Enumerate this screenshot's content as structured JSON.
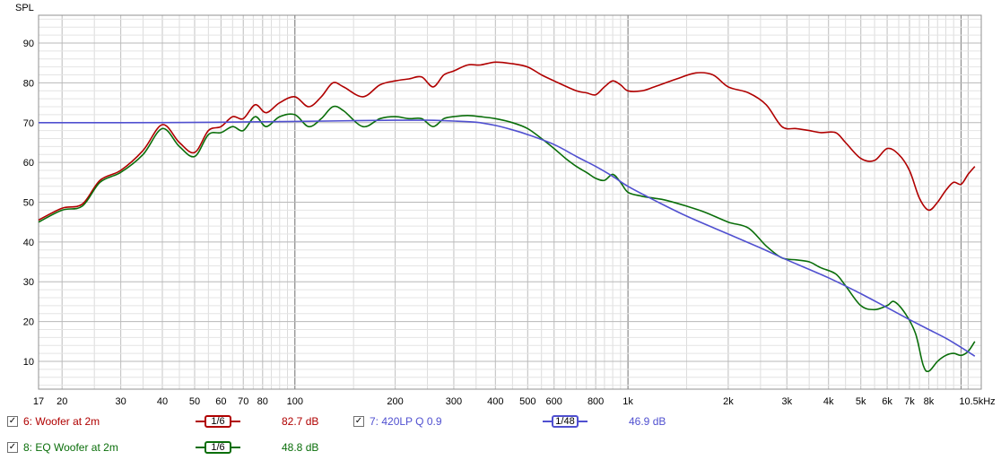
{
  "chart_data": {
    "type": "line",
    "ylabel": "SPL",
    "xunit": "kHz",
    "xscale": "log",
    "xlim": [
      17,
      11500
    ],
    "ylim": [
      3,
      97
    ],
    "yticks": [
      10,
      20,
      30,
      40,
      50,
      60,
      70,
      80,
      90
    ],
    "xticks": [
      {
        "v": 17,
        "label": "17"
      },
      {
        "v": 20,
        "label": "20"
      },
      {
        "v": 30,
        "label": "30"
      },
      {
        "v": 40,
        "label": "40"
      },
      {
        "v": 50,
        "label": "50"
      },
      {
        "v": 60,
        "label": "60"
      },
      {
        "v": 70,
        "label": "70"
      },
      {
        "v": 80,
        "label": "80"
      },
      {
        "v": 100,
        "label": "100"
      },
      {
        "v": 200,
        "label": "200"
      },
      {
        "v": 300,
        "label": "300"
      },
      {
        "v": 400,
        "label": "400"
      },
      {
        "v": 500,
        "label": "500"
      },
      {
        "v": 600,
        "label": "600"
      },
      {
        "v": 800,
        "label": "800"
      },
      {
        "v": 1000,
        "label": "1k"
      },
      {
        "v": 2000,
        "label": "2k"
      },
      {
        "v": 3000,
        "label": "3k"
      },
      {
        "v": 4000,
        "label": "4k"
      },
      {
        "v": 5000,
        "label": "5k"
      },
      {
        "v": 6000,
        "label": "6k"
      },
      {
        "v": 7000,
        "label": "7k"
      },
      {
        "v": 8000,
        "label": "8k"
      },
      {
        "v": 10500,
        "label": "10.5kHz"
      }
    ],
    "major_x": [
      100,
      1000,
      10000
    ],
    "grid": true,
    "series": [
      {
        "name": "6: Woofer at 2m",
        "color": "#b00000",
        "points": [
          [
            17,
            45.5
          ],
          [
            20,
            48.5
          ],
          [
            23,
            49.5
          ],
          [
            26,
            55.5
          ],
          [
            30,
            58
          ],
          [
            35,
            63
          ],
          [
            40,
            69.5
          ],
          [
            45,
            65
          ],
          [
            50,
            62.5
          ],
          [
            55,
            68
          ],
          [
            60,
            69
          ],
          [
            65,
            71.5
          ],
          [
            70,
            71
          ],
          [
            76,
            74.5
          ],
          [
            82,
            72.5
          ],
          [
            90,
            75
          ],
          [
            100,
            76.5
          ],
          [
            110,
            74
          ],
          [
            120,
            76.5
          ],
          [
            130,
            80
          ],
          [
            140,
            79
          ],
          [
            160,
            76.5
          ],
          [
            180,
            79.5
          ],
          [
            200,
            80.5
          ],
          [
            220,
            81
          ],
          [
            240,
            81.5
          ],
          [
            260,
            79
          ],
          [
            280,
            82
          ],
          [
            300,
            83
          ],
          [
            330,
            84.5
          ],
          [
            360,
            84.5
          ],
          [
            400,
            85.2
          ],
          [
            450,
            84.8
          ],
          [
            500,
            84
          ],
          [
            550,
            82
          ],
          [
            600,
            80.5
          ],
          [
            700,
            78
          ],
          [
            750,
            77.5
          ],
          [
            800,
            77
          ],
          [
            850,
            79
          ],
          [
            900,
            80.5
          ],
          [
            950,
            79.5
          ],
          [
            1000,
            78
          ],
          [
            1100,
            78
          ],
          [
            1200,
            79
          ],
          [
            1400,
            81
          ],
          [
            1600,
            82.5
          ],
          [
            1800,
            82
          ],
          [
            2000,
            79
          ],
          [
            2300,
            77.5
          ],
          [
            2600,
            74.5
          ],
          [
            2900,
            69
          ],
          [
            3200,
            68.5
          ],
          [
            3500,
            68
          ],
          [
            3800,
            67.5
          ],
          [
            4200,
            67.5
          ],
          [
            4500,
            65
          ],
          [
            5000,
            61
          ],
          [
            5500,
            60.5
          ],
          [
            6000,
            63.5
          ],
          [
            6500,
            62
          ],
          [
            7000,
            58
          ],
          [
            7500,
            51
          ],
          [
            8000,
            48
          ],
          [
            8500,
            50
          ],
          [
            9000,
            53
          ],
          [
            9500,
            55
          ],
          [
            10000,
            54.5
          ],
          [
            10500,
            57
          ],
          [
            11000,
            59
          ]
        ]
      },
      {
        "name": "8: EQ Woofer at 2m",
        "color": "#0a6e0a",
        "points": [
          [
            17,
            45
          ],
          [
            20,
            48
          ],
          [
            23,
            49
          ],
          [
            26,
            55
          ],
          [
            30,
            57.5
          ],
          [
            35,
            62
          ],
          [
            40,
            68.5
          ],
          [
            45,
            64
          ],
          [
            50,
            61.5
          ],
          [
            55,
            67
          ],
          [
            60,
            67.5
          ],
          [
            65,
            69
          ],
          [
            70,
            68
          ],
          [
            76,
            71.5
          ],
          [
            82,
            69
          ],
          [
            90,
            71.5
          ],
          [
            100,
            72
          ],
          [
            110,
            69
          ],
          [
            120,
            71
          ],
          [
            130,
            74
          ],
          [
            140,
            73
          ],
          [
            160,
            69
          ],
          [
            180,
            71
          ],
          [
            200,
            71.5
          ],
          [
            220,
            71
          ],
          [
            240,
            71
          ],
          [
            260,
            69
          ],
          [
            280,
            71
          ],
          [
            300,
            71.5
          ],
          [
            330,
            71.8
          ],
          [
            360,
            71.5
          ],
          [
            400,
            71
          ],
          [
            450,
            70
          ],
          [
            500,
            68.5
          ],
          [
            550,
            66
          ],
          [
            600,
            63.5
          ],
          [
            650,
            61
          ],
          [
            700,
            59
          ],
          [
            750,
            57.5
          ],
          [
            800,
            56
          ],
          [
            850,
            55.5
          ],
          [
            900,
            57
          ],
          [
            950,
            55
          ],
          [
            1000,
            52.5
          ],
          [
            1100,
            51.5
          ],
          [
            1200,
            51
          ],
          [
            1300,
            50.5
          ],
          [
            1500,
            49
          ],
          [
            1700,
            47.5
          ],
          [
            2000,
            45
          ],
          [
            2300,
            43.5
          ],
          [
            2600,
            39
          ],
          [
            2900,
            36
          ],
          [
            3200,
            35.5
          ],
          [
            3500,
            35
          ],
          [
            3800,
            33.5
          ],
          [
            4200,
            32
          ],
          [
            4500,
            29
          ],
          [
            5000,
            24
          ],
          [
            5500,
            23
          ],
          [
            6000,
            24
          ],
          [
            6300,
            25
          ],
          [
            6800,
            22
          ],
          [
            7300,
            17
          ],
          [
            7700,
            9
          ],
          [
            8000,
            7.5
          ],
          [
            8500,
            10
          ],
          [
            9000,
            11.5
          ],
          [
            9500,
            12
          ],
          [
            10000,
            11.5
          ],
          [
            10500,
            12.5
          ],
          [
            11000,
            15
          ]
        ]
      },
      {
        "name": "7: 420LP Q 0.9",
        "color": "#5050d0",
        "points": [
          [
            17,
            70
          ],
          [
            30,
            70
          ],
          [
            60,
            70.1
          ],
          [
            100,
            70.3
          ],
          [
            150,
            70.5
          ],
          [
            200,
            70.6
          ],
          [
            250,
            70.6
          ],
          [
            300,
            70.4
          ],
          [
            350,
            70.1
          ],
          [
            400,
            69.3
          ],
          [
            450,
            68.2
          ],
          [
            500,
            67
          ],
          [
            600,
            64.5
          ],
          [
            700,
            61.5
          ],
          [
            800,
            59
          ],
          [
            900,
            56.5
          ],
          [
            1000,
            54
          ],
          [
            1200,
            50.5
          ],
          [
            1500,
            46.5
          ],
          [
            2000,
            42
          ],
          [
            2500,
            38.5
          ],
          [
            3000,
            35.5
          ],
          [
            4000,
            31
          ],
          [
            5000,
            27
          ],
          [
            6000,
            23.5
          ],
          [
            7000,
            20.5
          ],
          [
            8000,
            18
          ],
          [
            9000,
            15.8
          ],
          [
            10000,
            13.5
          ],
          [
            11000,
            11.3
          ]
        ]
      }
    ]
  },
  "legend": {
    "items": [
      {
        "label": "6: Woofer at 2m",
        "smooth": "1/6",
        "value": "82.7 dB",
        "color": "#b00000"
      },
      {
        "label": "8: EQ Woofer at 2m",
        "smooth": "1/6",
        "value": "48.8 dB",
        "color": "#0a6e0a"
      },
      {
        "label": "7: 420LP Q 0.9",
        "smooth": "1/48",
        "value": "46.9 dB",
        "color": "#5050d0"
      }
    ]
  }
}
